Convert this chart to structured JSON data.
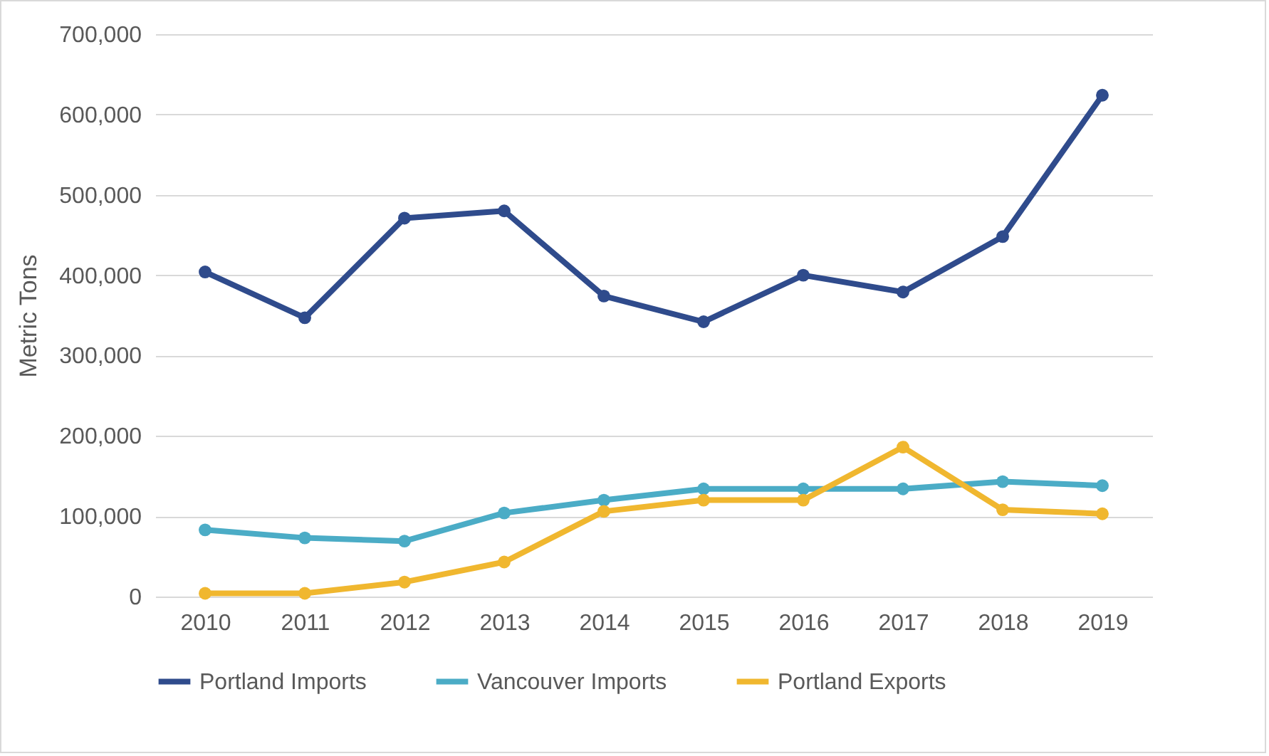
{
  "chart_data": {
    "type": "line",
    "ylabel": "Metric Tons",
    "categories": [
      "2010",
      "2011",
      "2012",
      "2013",
      "2014",
      "2015",
      "2016",
      "2017",
      "2018",
      "2019"
    ],
    "series": [
      {
        "name": "Portland Imports",
        "color": "#2f4b8c",
        "values": [
          404000,
          347000,
          471000,
          480000,
          374000,
          342000,
          400000,
          379000,
          448000,
          624000
        ]
      },
      {
        "name": "Vancouver Imports",
        "color": "#4bacc6",
        "values": [
          83000,
          73000,
          69000,
          104000,
          120000,
          134000,
          134000,
          134000,
          143000,
          138000
        ]
      },
      {
        "name": "Portland Exports",
        "color": "#f0b72f",
        "values": [
          4000,
          4000,
          18000,
          43000,
          106000,
          120000,
          120000,
          186000,
          108000,
          103000
        ]
      }
    ],
    "ylim": [
      0,
      700000
    ],
    "yticks": [
      0,
      {
        "value": 100000,
        "label": "100,000"
      },
      {
        "value": 200000,
        "label": "200,000"
      },
      {
        "value": 300000,
        "label": "300,000"
      },
      {
        "value": 400000,
        "label": "400,000"
      },
      {
        "value": 500000,
        "label": "500,000"
      },
      {
        "value": 600000,
        "label": "600,000"
      },
      {
        "value": 700000,
        "label": "700,000"
      }
    ],
    "grid": "y",
    "legend": "bottom",
    "marker": "circle"
  }
}
